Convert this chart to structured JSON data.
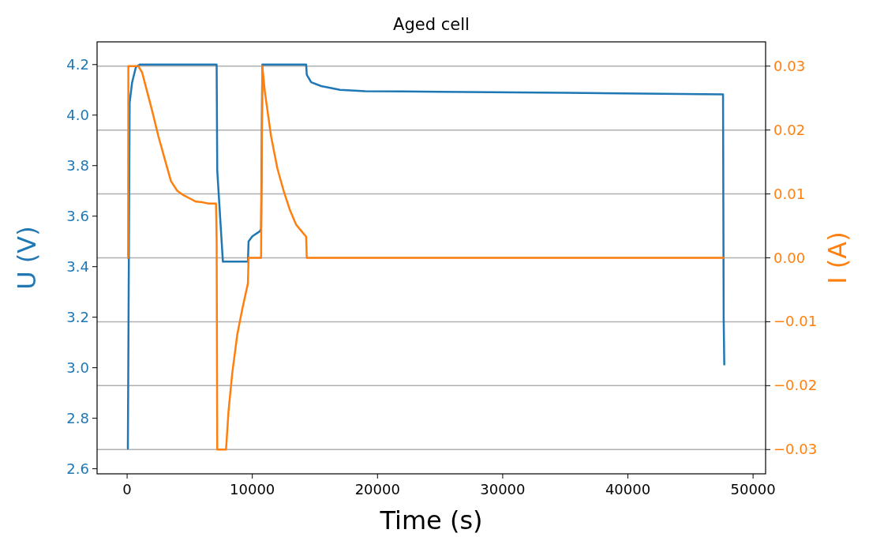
{
  "chart_data": {
    "type": "line",
    "title": "Aged cell",
    "xlabel": "Time (s)",
    "ylabel": "U (V)",
    "y2label": "I (A)",
    "xlim": [
      -2400,
      51000
    ],
    "xticks": [
      0,
      10000,
      20000,
      30000,
      40000,
      50000
    ],
    "ylim": [
      2.58,
      4.29
    ],
    "yticks": [
      {
        "value": 2.6,
        "label": "2.6"
      },
      {
        "value": 2.8,
        "label": "2.8"
      },
      {
        "value": 3.0,
        "label": "3.0"
      },
      {
        "value": 3.2,
        "label": "3.2"
      },
      {
        "value": 3.4,
        "label": "3.4"
      },
      {
        "value": 3.6,
        "label": "3.6"
      },
      {
        "value": 3.8,
        "label": "3.8"
      },
      {
        "value": 4.0,
        "label": "4.0"
      },
      {
        "value": 4.2,
        "label": "4.2"
      }
    ],
    "y2lim": [
      -0.0338,
      0.0338
    ],
    "y2ticks": [
      {
        "value": -0.03,
        "label": "−0.03"
      },
      {
        "value": -0.02,
        "label": "−0.02"
      },
      {
        "value": -0.01,
        "label": "−0.01"
      },
      {
        "value": 0,
        "label": "0.00"
      },
      {
        "value": 0.01,
        "label": "0.01"
      },
      {
        "value": 0.02,
        "label": "0.02"
      },
      {
        "value": 0.03,
        "label": "0.03"
      }
    ],
    "grid": "y2",
    "series": [
      {
        "color": "#1f77b4",
        "x": [
          0,
          60,
          200,
          400,
          700,
          1000,
          7150,
          7200,
          7400,
          7650,
          9650,
          9700,
          10000,
          10600,
          10700,
          10800,
          14300,
          14350,
          14700,
          15500,
          17000,
          19000,
          25000,
          35000,
          47600,
          47650,
          47700
        ],
        "values": [
          2.68,
          2.68,
          4.05,
          4.13,
          4.19,
          4.2,
          4.2,
          3.78,
          3.62,
          3.42,
          3.42,
          3.5,
          3.52,
          3.54,
          3.55,
          4.2,
          4.2,
          4.16,
          4.13,
          4.115,
          4.1,
          4.095,
          4.092,
          4.088,
          4.082,
          3.2,
          3.01
        ]
      },
      {
        "color": "#ff7f0e",
        "axis": "y2",
        "x": [
          0,
          80,
          100,
          900,
          1200,
          1600,
          2000,
          2500,
          3000,
          3500,
          4000,
          4500,
          5000,
          5500,
          6000,
          6500,
          7100,
          7150,
          7200,
          7900,
          8100,
          8400,
          8800,
          9200,
          9650,
          9700,
          10700,
          10800,
          11000,
          11500,
          12000,
          12500,
          13000,
          13500,
          14000,
          14300,
          14350,
          47700
        ],
        "values": [
          0,
          0,
          0.03,
          0.03,
          0.029,
          0.026,
          0.023,
          0.019,
          0.0155,
          0.012,
          0.0105,
          0.0098,
          0.0093,
          0.0088,
          0.0087,
          0.0085,
          0.0085,
          0.003,
          -0.03,
          -0.03,
          -0.024,
          -0.018,
          -0.012,
          -0.008,
          -0.004,
          0,
          0,
          0.03,
          0.026,
          0.019,
          0.014,
          0.0105,
          0.0075,
          0.0052,
          0.004,
          0.0033,
          0,
          0
        ]
      }
    ]
  }
}
